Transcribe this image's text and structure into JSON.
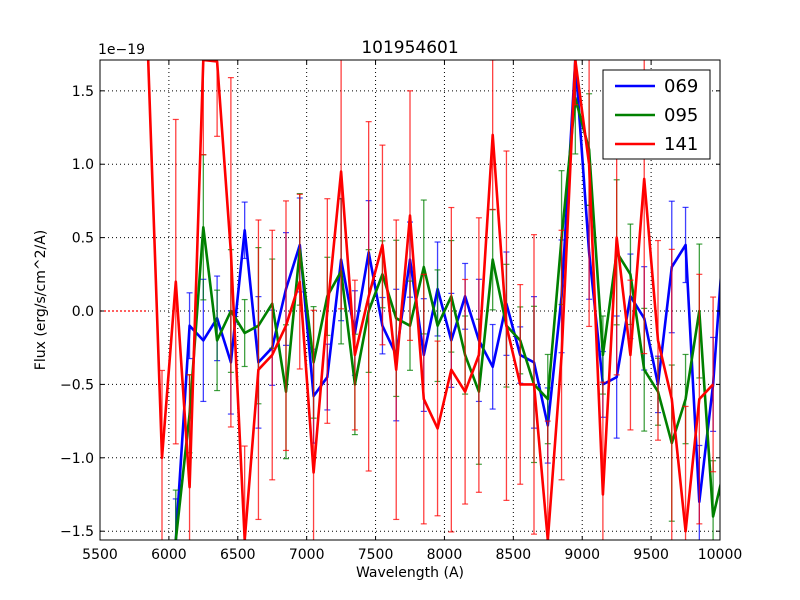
{
  "chart_data": {
    "type": "line",
    "title": "101954601",
    "xlabel": "Wavelength (A)",
    "ylabel": "Flux (erg/s/cm^2/A)",
    "y_offset_label": "1e−19",
    "xlim": [
      5500,
      10000
    ],
    "ylim": [
      -1.56,
      1.71
    ],
    "xticks": [
      5500,
      6000,
      6500,
      7000,
      7500,
      8000,
      8500,
      9000,
      9500,
      10000
    ],
    "yticks": [
      -1.5,
      -1.0,
      -0.5,
      0.0,
      0.5,
      1.0,
      1.5
    ],
    "xtick_labels": [
      "5500",
      "6000",
      "6500",
      "7000",
      "7500",
      "8000",
      "8500",
      "9000",
      "9500",
      "10000"
    ],
    "ytick_labels": [
      "−1.5",
      "−1.0",
      "−0.5",
      "0.0",
      "0.5",
      "1.0",
      "1.5"
    ],
    "grid": true,
    "legend_position": "top-right",
    "series": [
      {
        "name": "069",
        "color": "#0000ff",
        "x_start": 6050,
        "x_step": 100,
        "yerr": 0.32,
        "values": [
          -1.6,
          -0.1,
          -0.2,
          -0.05,
          -0.35,
          0.55,
          -0.35,
          -0.25,
          0.15,
          0.45,
          -0.58,
          -0.45,
          0.35,
          -0.15,
          0.4,
          -0.1,
          -0.3,
          0.35,
          -0.3,
          0.15,
          -0.2,
          0.1,
          -0.2,
          -0.38,
          0.05,
          -0.3,
          -0.35,
          -0.78,
          0.1,
          1.71,
          0.4,
          -0.5,
          -0.45,
          0.1,
          -0.05,
          -0.5,
          0.3,
          0.45,
          -1.3,
          -0.5,
          0.8
        ]
      },
      {
        "name": "095",
        "color": "#008000",
        "x_start": 6050,
        "x_step": 100,
        "yerr": 0.38,
        "values": [
          -1.6,
          -0.7,
          0.57,
          -0.2,
          0.0,
          -0.15,
          -0.1,
          0.05,
          -0.55,
          0.42,
          -0.35,
          0.1,
          0.27,
          -0.5,
          0.0,
          0.25,
          -0.05,
          -0.1,
          0.3,
          -0.1,
          0.1,
          -0.3,
          -0.55,
          0.35,
          -0.1,
          -0.2,
          -0.5,
          -0.6,
          0.5,
          1.45,
          1.1,
          -0.3,
          0.4,
          0.25,
          -0.4,
          -0.55,
          -0.9,
          -0.6,
          0.0,
          -1.4,
          -1.0
        ]
      },
      {
        "name": "141",
        "color": "#ff0000",
        "x_start": 5850,
        "x_step": 100,
        "yerr": 0.85,
        "values": [
          3.0,
          -1.0,
          0.2,
          -1.2,
          2.0,
          1.7,
          0.4,
          -1.6,
          -0.4,
          -0.3,
          -0.1,
          0.2,
          -1.1,
          0.0,
          0.95,
          -0.3,
          0.1,
          0.45,
          -0.4,
          0.65,
          -0.6,
          -0.8,
          -0.4,
          -0.55,
          -0.3,
          1.2,
          -0.1,
          -0.5,
          -0.5,
          -1.6,
          -0.3,
          2.0,
          1.0,
          -1.25,
          0.5,
          -0.3,
          0.9,
          -0.2,
          -0.6,
          -1.5,
          -0.6,
          -0.5
        ]
      }
    ]
  }
}
